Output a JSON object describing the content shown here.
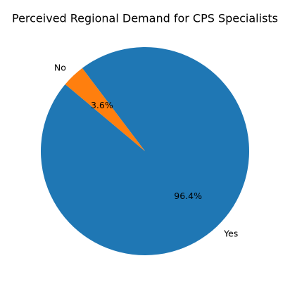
{
  "chart_data": {
    "type": "pie",
    "title": "Perceived Regional Demand for CPS Specialists",
    "categories": [
      "Yes",
      "No"
    ],
    "values": [
      96.4,
      3.6
    ],
    "value_labels": [
      "96.4%",
      "3.6%"
    ],
    "colors": [
      "#1f77b4",
      "#ff7f0e"
    ],
    "start_angle": 140
  }
}
